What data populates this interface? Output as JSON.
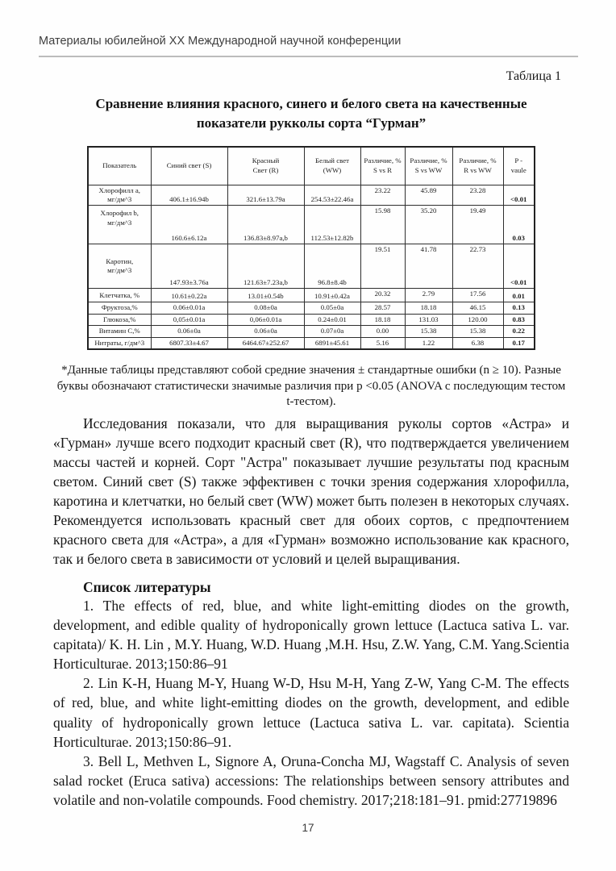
{
  "page": {
    "running_head": "Материалы юбилейной XX Международной научной конференции",
    "table_caption": "Таблица 1",
    "table_title": "Сравнение влияния красного, синего и белого света на качественные показатели рукколы сорта “Гурман”",
    "page_number": "17"
  },
  "table": {
    "headers": [
      "Показатель",
      "Синий свет (S)",
      "Красный\nСвет (R)",
      "Белый свет\n(WW)",
      "Различие, %\nS vs R",
      "Различие, %\nS vs WW",
      "Различие, %\nR vs WW",
      "P -\nvaule"
    ],
    "rows": [
      {
        "label": "Хлорофилл a,\nмг/дм^3",
        "values": [
          "406.1±16.94b",
          "321.6±13.79a",
          "254.53±22.46a"
        ],
        "diffs": [
          "23.22",
          "45.89",
          "23.28"
        ],
        "p": "<0.01"
      },
      {
        "label": "Хлорофил b,\nмг/дм^3",
        "values": [
          "160.6±6.12a",
          "136.83±8.97a,b",
          "112.53±12.82b"
        ],
        "diffs": [
          "15.98",
          "35.20",
          "19.49"
        ],
        "p": "0.03"
      },
      {
        "label": "Каротин,\nмг/дм^3",
        "values": [
          "147.93±3.76a",
          "121.63±7.23a,b",
          "96.8±8.4b"
        ],
        "diffs": [
          "19.51",
          "41.78",
          "22.73"
        ],
        "p": "<0.01"
      },
      {
        "label": "Клетчатка, %",
        "values": [
          "10.61±0.22a",
          "13.01±0.54b",
          "10.91±0.42a"
        ],
        "diffs": [
          "20.32",
          "2.79",
          "17.56"
        ],
        "p": "0.01"
      },
      {
        "label": "Фруктоза,%",
        "values": [
          "0.06±0.01a",
          "0.08±0a",
          "0.05±0a"
        ],
        "diffs": [
          "28.57",
          "18.18",
          "46.15"
        ],
        "p": "0.13"
      },
      {
        "label": "Глюкоза,%",
        "values": [
          "0,05±0.01a",
          "0,06±0.01a",
          "0.24±0.01"
        ],
        "diffs": [
          "18.18",
          "131.03",
          "120.00"
        ],
        "p": "0.83"
      },
      {
        "label": "Витамин C,%",
        "values": [
          "0.06±0a",
          "0.06±0a",
          "0.07±0a"
        ],
        "diffs": [
          "0.00",
          "15.38",
          "15.38"
        ],
        "p": "0.22"
      },
      {
        "label": "Нитраты, г/дм^3",
        "values": [
          "6807.33±4.67",
          "6464.67±252.67",
          "6891±45.61"
        ],
        "diffs": [
          "5.16",
          "1.22",
          "6.38"
        ],
        "p": "0.17"
      }
    ]
  },
  "footnote": "*Данные таблицы представляют собой средние значения ± стандартные ошибки (n ≥ 10). Разные буквы обозначают статистически значимые различия при p <0.05 (ANOVA с последующим тестом t-тестом).",
  "body_paragraph": "Исследования показали, что для выращивания руколы сортов «Астра» и «Гурман» лучше всего подходит красный свет (R), что подтверждается увеличением массы частей и корней. Сорт \"Астра\" показывает лучшие результаты под красным светом. Синий свет (S) также эффективен с точки зрения содержания хлорофилла, каротина и клетчатки, но белый свет (WW) может быть полезен в некоторых случаях. Рекомендуется использовать красный свет для обоих сортов, с предпочтением красного света для «Астра», а для «Гурман» возможно использование как красного, так и белого света в зависимости от условий и целей выращивания.",
  "references": {
    "heading": "Список литературы",
    "items": [
      "1. The effects of red, blue, and white light-emitting diodes on the growth, development, and edible quality of hydroponically grown lettuce (Lactuca sativa L. var. capitata)/ K. H. Lin , M.Y. Huang, W.D. Huang ,M.H. Hsu, Z.W. Yang, C.M. Yang.Scientia Horticulturae. 2013;150:86–91",
      "2. Lin K-H, Huang M-Y, Huang W-D, Hsu M-H, Yang Z-W, Yang C-M. The effects of red, blue, and white light-emitting diodes on the growth, development, and edible quality of hydroponically grown lettuce (Lactuca sativa L. var. capitata). Scientia Horticulturae. 2013;150:86–91.",
      "3. Bell L, Methven L, Signore A, Oruna-Concha MJ, Wagstaff C. Analysis of seven salad rocket (Eruca sativa) accessions: The relationships between sensory attributes and volatile and non-volatile compounds. Food chemistry. 2017;218:181–91. pmid:27719896"
    ]
  }
}
